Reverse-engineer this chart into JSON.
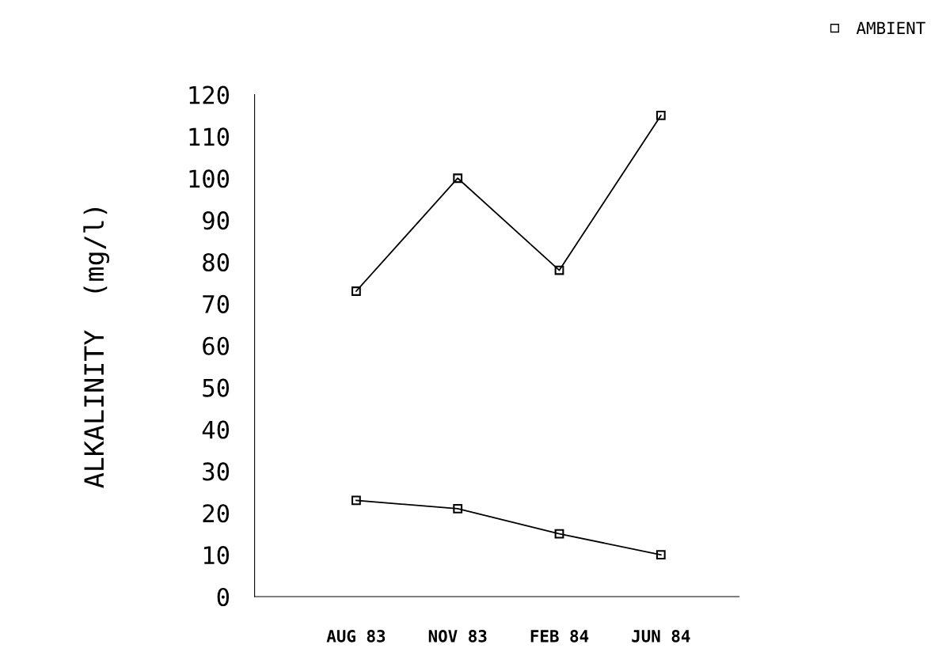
{
  "chart_data": {
    "type": "line",
    "ylabel": "ALKALINITY  (mg/l)",
    "categories": [
      "AUG 83",
      "NOV 83",
      "FEB 84",
      "JUN 84"
    ],
    "series": [
      {
        "name": "AMBIENT",
        "color": "#000000",
        "values": [
          23,
          21,
          15,
          10
        ]
      },
      {
        "color": "#000000",
        "values": [
          73,
          100,
          78,
          115
        ]
      }
    ],
    "ylim": [
      0,
      120
    ],
    "yticks": [
      0,
      10,
      20,
      30,
      40,
      50,
      60,
      70,
      80,
      90,
      100,
      110,
      120
    ],
    "marker": "square",
    "line_style": "solid",
    "grid": false,
    "legend": "top right"
  }
}
